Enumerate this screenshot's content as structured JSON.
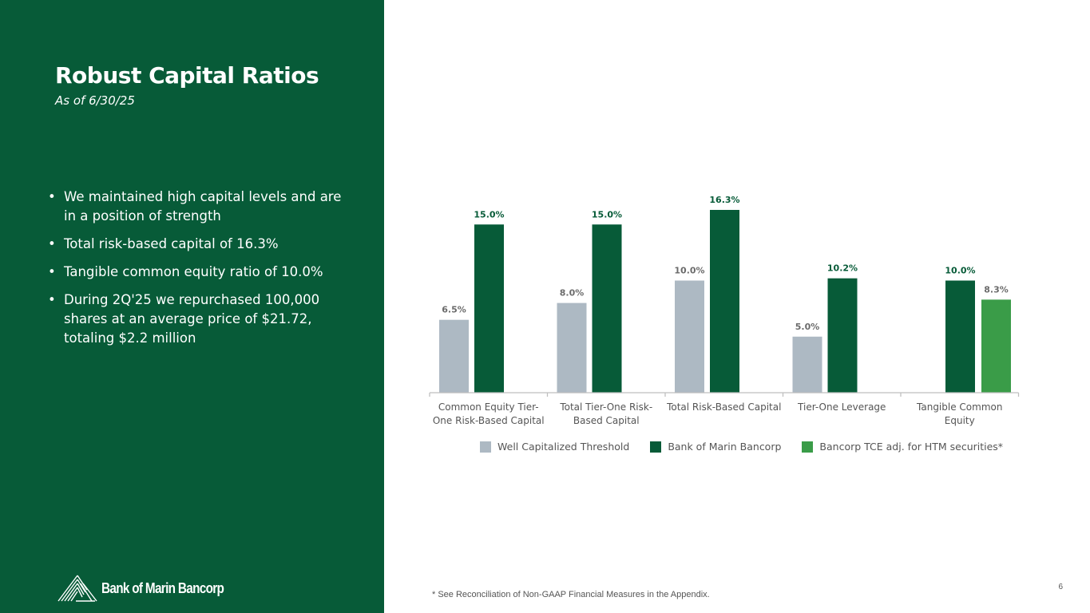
{
  "slide": {
    "title": "Robust Capital Ratios",
    "subtitle": "As of 6/30/25",
    "bullets": [
      "We maintained high capital levels and are in a position of strength",
      "Total risk-based capital of 16.3%",
      "Tangible common equity ratio of 10.0%",
      "During  2Q'25 we repurchased 100,000 shares at an average price of $21.72, totaling $2.2 million"
    ],
    "logo_text": "Bank of Marin Bancorp",
    "footnote": "* See Reconciliation of Non-GAAP Financial Measures in the Appendix.",
    "page_number": "6"
  },
  "colors": {
    "panel": "#075b38",
    "threshold": "#adb9c3",
    "bancorp": "#075b38",
    "tce_adj": "#3a9c48"
  },
  "chart_data": {
    "type": "bar",
    "title": "",
    "xlabel": "",
    "ylabel": "",
    "ylim": [
      0,
      16.3
    ],
    "grid": false,
    "legend_position": "bottom",
    "categories": [
      [
        "Common Equity Tier-",
        "One Risk-Based Capital"
      ],
      [
        "Total Tier-One Risk-",
        "Based Capital"
      ],
      [
        "Total Risk-Based Capital"
      ],
      [
        "Tier-One Leverage"
      ],
      [
        "Tangible Common",
        "Equity"
      ]
    ],
    "series": [
      {
        "name": "Well Capitalized Threshold",
        "color": "#adb9c3",
        "label_color": "#6b6b6b",
        "values": [
          6.5,
          8.0,
          10.0,
          5.0,
          null
        ],
        "labels": [
          "6.5%",
          "8.0%",
          "10.0%",
          "5.0%",
          ""
        ]
      },
      {
        "name": "Bank of Marin Bancorp",
        "color": "#075b38",
        "label_color": "#075b38",
        "values": [
          15.0,
          15.0,
          16.3,
          10.2,
          10.0
        ],
        "labels": [
          "15.0%",
          "15.0%",
          "16.3%",
          "10.2%",
          "10.0%"
        ]
      },
      {
        "name": "Bancorp TCE adj. for HTM securities*",
        "color": "#3a9c48",
        "label_color": "#6b6b6b",
        "values": [
          null,
          null,
          null,
          null,
          8.3
        ],
        "labels": [
          "",
          "",
          "",
          "",
          "8.3%"
        ]
      }
    ]
  }
}
